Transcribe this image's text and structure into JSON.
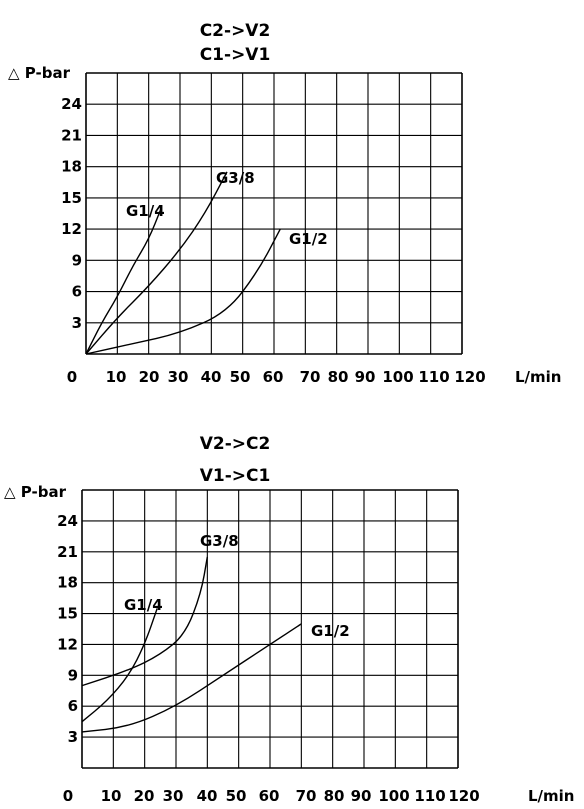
{
  "chart_data": [
    {
      "type": "line",
      "title_lines": [
        "C2->V2",
        "C1->V1"
      ],
      "ylabel": "△ P-bar",
      "xlabel": "L/min",
      "x_ticks": [
        "0",
        "10",
        "20",
        "30",
        "40",
        "50",
        "60",
        "70",
        "80",
        "90",
        "100",
        "110",
        "120"
      ],
      "y_ticks": [
        "3",
        "6",
        "9",
        "12",
        "15",
        "18",
        "21",
        "24"
      ],
      "xlim": [
        0,
        120
      ],
      "ylim": [
        0,
        27
      ],
      "grid": true,
      "series": [
        {
          "name": "G1/4",
          "points": [
            [
              0,
              0
            ],
            [
              5,
              3
            ],
            [
              10,
              5.5
            ],
            [
              15,
              8.5
            ],
            [
              20,
              11
            ],
            [
              24,
              14
            ]
          ]
        },
        {
          "name": "G3/8",
          "points": [
            [
              0,
              0
            ],
            [
              10,
              3.5
            ],
            [
              20,
              6.5
            ],
            [
              30,
              10
            ],
            [
              38,
              13.5
            ],
            [
              45,
              17.5
            ]
          ]
        },
        {
          "name": "G1/2",
          "points": [
            [
              0,
              0
            ],
            [
              15,
              1
            ],
            [
              30,
              2
            ],
            [
              45,
              4
            ],
            [
              55,
              8
            ],
            [
              62,
              12
            ]
          ]
        }
      ]
    },
    {
      "type": "line",
      "title_lines": [
        "V2->C2",
        "V1->C1"
      ],
      "ylabel": "△ P-bar",
      "xlabel": "L/min",
      "x_ticks": [
        "0",
        "10",
        "20",
        "30",
        "40",
        "50",
        "60",
        "70",
        "80",
        "90",
        "100",
        "110",
        "120"
      ],
      "y_ticks": [
        "3",
        "6",
        "9",
        "12",
        "15",
        "18",
        "21",
        "24"
      ],
      "xlim": [
        0,
        120
      ],
      "ylim": [
        0,
        27
      ],
      "grid": true,
      "series": [
        {
          "name": "G1/4",
          "points": [
            [
              0,
              4.5
            ],
            [
              8,
              6.5
            ],
            [
              15,
              9
            ],
            [
              20,
              12
            ],
            [
              24,
              15.5
            ]
          ]
        },
        {
          "name": "G3/8",
          "points": [
            [
              0,
              8
            ],
            [
              15,
              9.5
            ],
            [
              25,
              11
            ],
            [
              33,
              13
            ],
            [
              38,
              17
            ],
            [
              40,
              20.5
            ]
          ]
        },
        {
          "name": "G1/2",
          "points": [
            [
              0,
              3.5
            ],
            [
              15,
              4
            ],
            [
              30,
              6
            ],
            [
              45,
              9
            ],
            [
              60,
              12
            ],
            [
              70,
              14
            ]
          ]
        }
      ]
    }
  ]
}
